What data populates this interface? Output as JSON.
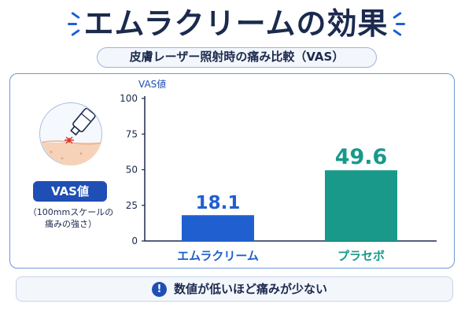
{
  "header": {
    "title": "エムラクリームの効果",
    "subtitle": "皮膚レーザー照射時の痛み比較（VAS）"
  },
  "side": {
    "icon": "laser-skin-icon",
    "badge": "VAS値",
    "caption_line1": "（100mmスケールの",
    "caption_line2": "痛みの強さ）"
  },
  "note": {
    "icon": "exclamation-icon",
    "text": "数値が低いほど痛みが少ない"
  },
  "colors": {
    "navy": "#1b2a4e",
    "blue": "#1f5fd0",
    "teal": "#18998a"
  },
  "chart_data": {
    "type": "bar",
    "ylabel": "VAS値",
    "categories": [
      "エムラクリーム",
      "プラセボ"
    ],
    "values": [
      18.1,
      49.6
    ],
    "value_labels": [
      "18.1",
      "49.6"
    ],
    "bar_colors": [
      "#1f5fd0",
      "#18998a"
    ],
    "ylim": [
      0,
      100
    ],
    "yticks": [
      "0",
      "25",
      "50",
      "75",
      "100"
    ],
    "grid": false
  }
}
